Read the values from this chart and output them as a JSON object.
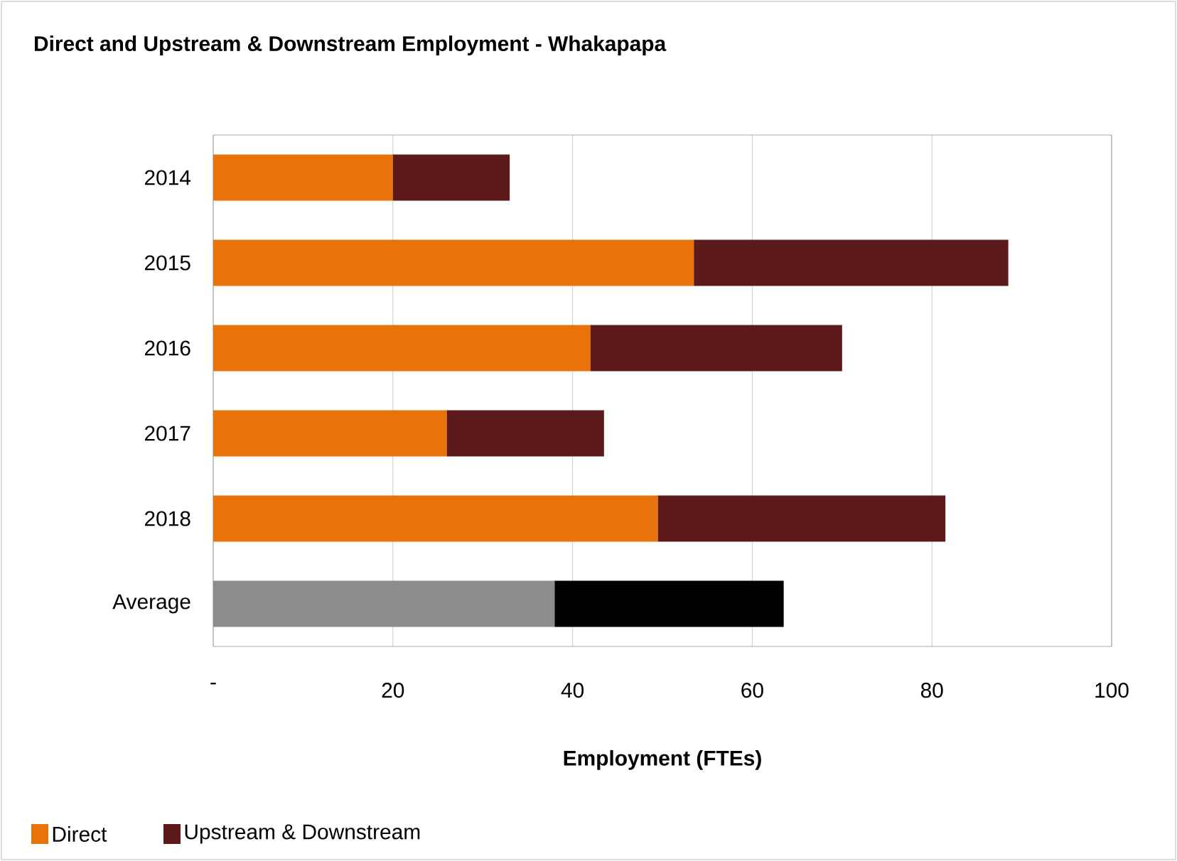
{
  "chart_data": {
    "type": "bar",
    "orientation": "horizontal",
    "stacked": true,
    "title": "Direct and Upstream & Downstream Employment - Whakapapa",
    "xlabel": "Employment (FTEs)",
    "categories": [
      "2014",
      "2015",
      "2016",
      "2017",
      "2018",
      "Average"
    ],
    "series": [
      {
        "name": "Direct",
        "color": "#e8720c",
        "colors": [
          "#e8720c",
          "#e8720c",
          "#e8720c",
          "#e8720c",
          "#e8720c",
          "#8c8c8c"
        ],
        "values": [
          20,
          53.5,
          42,
          26,
          49.5,
          38
        ]
      },
      {
        "name": "Upstream & Downstream",
        "color": "#5c1a1a",
        "colors": [
          "#5c1a1a",
          "#5c1a1a",
          "#5c1a1a",
          "#5c1a1a",
          "#5c1a1a",
          "#000000"
        ],
        "values": [
          13,
          35,
          28,
          17.5,
          32,
          25.5
        ]
      }
    ],
    "xlim": [
      0,
      100
    ],
    "xticks": [
      {
        "value": 0,
        "label": "-"
      },
      20,
      40,
      60,
      80,
      100
    ],
    "grid": "x",
    "legend": "bottom left"
  }
}
